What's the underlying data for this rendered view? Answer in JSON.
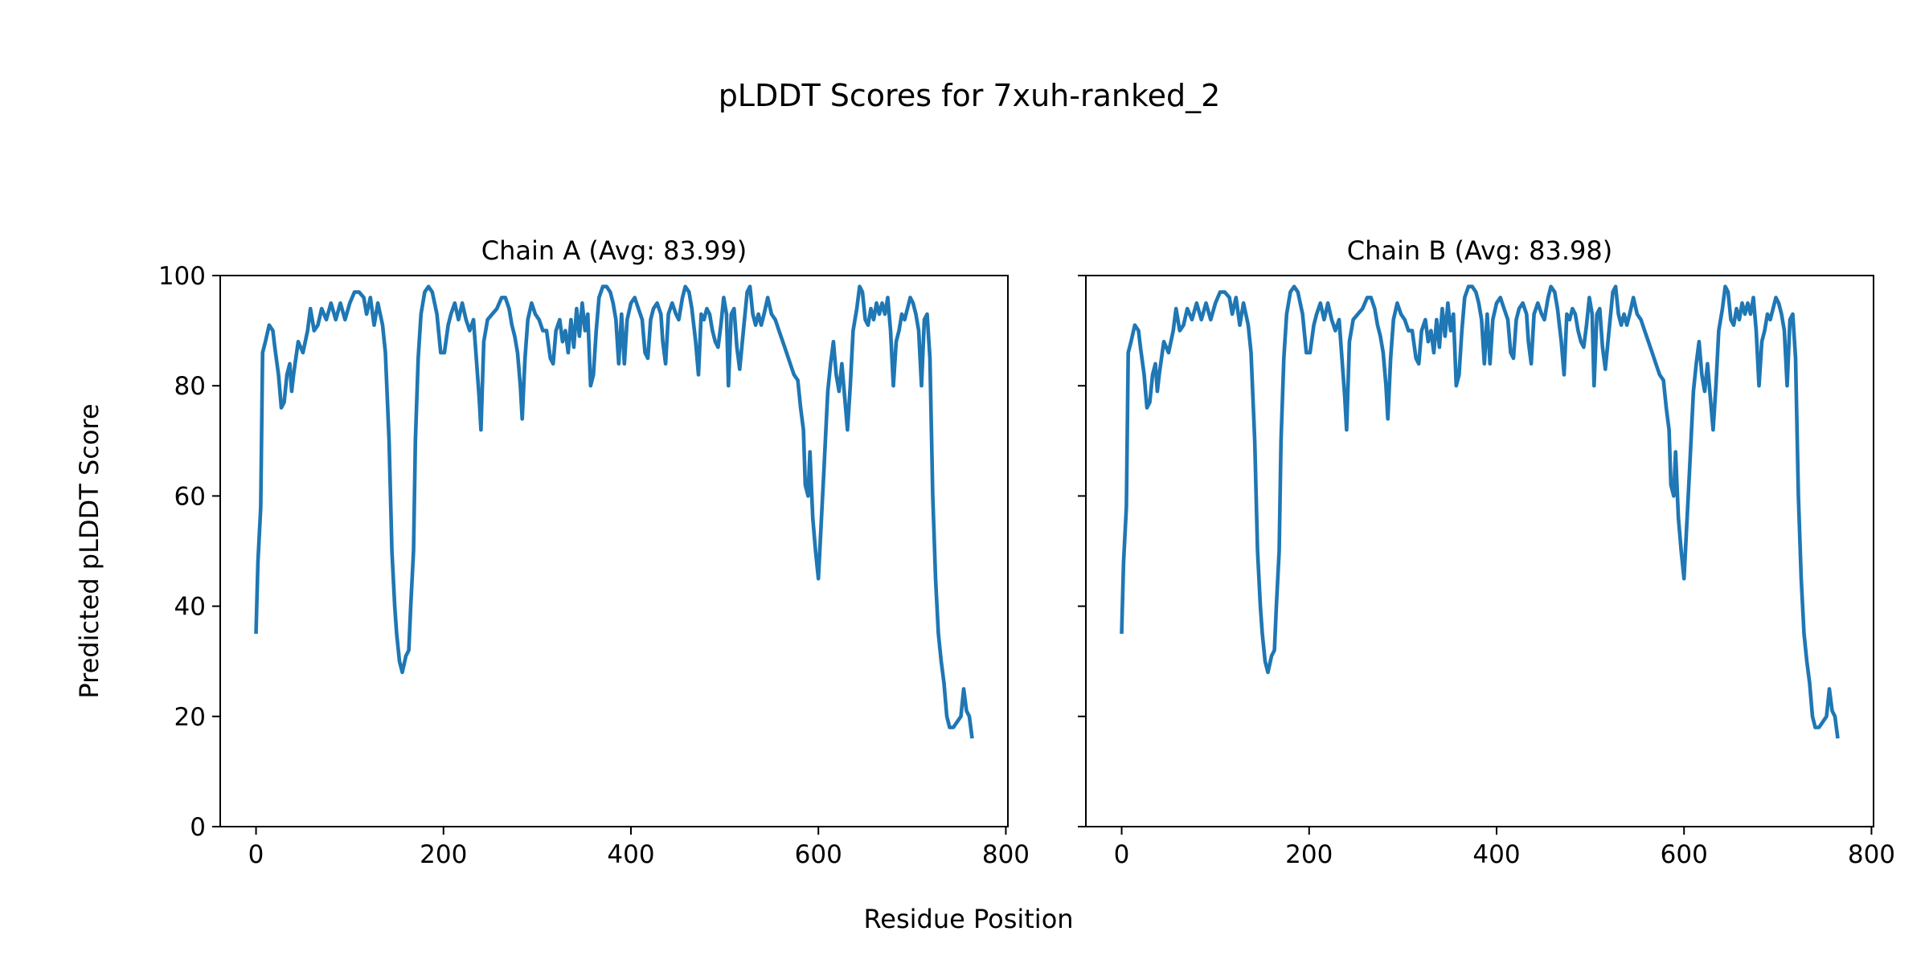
{
  "chart_data": {
    "type": "line",
    "title": "pLDDT Scores for 7xuh-ranked_2",
    "xlabel": "Residue Position",
    "ylabel": "Predicted pLDDT Score",
    "xlim": [
      -38.2,
      802.2
    ],
    "ylim": [
      0,
      100
    ],
    "xticks": [
      0,
      200,
      400,
      600,
      800
    ],
    "yticks": [
      0,
      20,
      40,
      60,
      80,
      100
    ],
    "grid": false,
    "line_color": "#1f77b4",
    "panels": [
      {
        "title": "Chain A (Avg: 83.99)",
        "show_ytick_labels": true
      },
      {
        "title": "Chain B (Avg: 83.98)",
        "show_ytick_labels": false
      }
    ],
    "series": {
      "name": "pLDDT",
      "points": [
        [
          0,
          35
        ],
        [
          2,
          48
        ],
        [
          5,
          58
        ],
        [
          7,
          86
        ],
        [
          10,
          88
        ],
        [
          14,
          91
        ],
        [
          18,
          90
        ],
        [
          20,
          87
        ],
        [
          24,
          82
        ],
        [
          27,
          76
        ],
        [
          30,
          77
        ],
        [
          33,
          82
        ],
        [
          36,
          84
        ],
        [
          38,
          79
        ],
        [
          40,
          82
        ],
        [
          45,
          88
        ],
        [
          50,
          86
        ],
        [
          55,
          90
        ],
        [
          58,
          94
        ],
        [
          62,
          90
        ],
        [
          66,
          91
        ],
        [
          70,
          94
        ],
        [
          75,
          92
        ],
        [
          80,
          95
        ],
        [
          85,
          92
        ],
        [
          90,
          95
        ],
        [
          95,
          92
        ],
        [
          100,
          95
        ],
        [
          105,
          97
        ],
        [
          110,
          97
        ],
        [
          115,
          96
        ],
        [
          118,
          93
        ],
        [
          122,
          96
        ],
        [
          126,
          91
        ],
        [
          130,
          95
        ],
        [
          135,
          91
        ],
        [
          138,
          86
        ],
        [
          142,
          70
        ],
        [
          145,
          50
        ],
        [
          148,
          40
        ],
        [
          150,
          35
        ],
        [
          153,
          30
        ],
        [
          156,
          28
        ],
        [
          160,
          31
        ],
        [
          163,
          32
        ],
        [
          165,
          40
        ],
        [
          168,
          50
        ],
        [
          170,
          70
        ],
        [
          173,
          85
        ],
        [
          176,
          93
        ],
        [
          180,
          97
        ],
        [
          184,
          98
        ],
        [
          188,
          97
        ],
        [
          193,
          93
        ],
        [
          197,
          86
        ],
        [
          201,
          86
        ],
        [
          205,
          91
        ],
        [
          208,
          93
        ],
        [
          212,
          95
        ],
        [
          216,
          92
        ],
        [
          220,
          95
        ],
        [
          224,
          92
        ],
        [
          228,
          90
        ],
        [
          232,
          92
        ],
        [
          235,
          85
        ],
        [
          238,
          78
        ],
        [
          240,
          72
        ],
        [
          243,
          88
        ],
        [
          247,
          92
        ],
        [
          252,
          93
        ],
        [
          257,
          94
        ],
        [
          262,
          96
        ],
        [
          266,
          96
        ],
        [
          270,
          94
        ],
        [
          273,
          91
        ],
        [
          276,
          89
        ],
        [
          279,
          86
        ],
        [
          282,
          80
        ],
        [
          284,
          74
        ],
        [
          287,
          85
        ],
        [
          290,
          92
        ],
        [
          294,
          95
        ],
        [
          298,
          93
        ],
        [
          302,
          92
        ],
        [
          306,
          90
        ],
        [
          310,
          90
        ],
        [
          314,
          85
        ],
        [
          317,
          84
        ],
        [
          320,
          90
        ],
        [
          324,
          92
        ],
        [
          327,
          88
        ],
        [
          330,
          90
        ],
        [
          333,
          86
        ],
        [
          336,
          92
        ],
        [
          339,
          87
        ],
        [
          342,
          94
        ],
        [
          345,
          89
        ],
        [
          348,
          95
        ],
        [
          351,
          90
        ],
        [
          354,
          93
        ],
        [
          357,
          80
        ],
        [
          360,
          82
        ],
        [
          363,
          90
        ],
        [
          366,
          96
        ],
        [
          370,
          98
        ],
        [
          374,
          98
        ],
        [
          378,
          97
        ],
        [
          381,
          95
        ],
        [
          384,
          92
        ],
        [
          387,
          84
        ],
        [
          390,
          93
        ],
        [
          393,
          84
        ],
        [
          396,
          92
        ],
        [
          400,
          95
        ],
        [
          404,
          96
        ],
        [
          408,
          94
        ],
        [
          412,
          92
        ],
        [
          415,
          86
        ],
        [
          418,
          85
        ],
        [
          421,
          92
        ],
        [
          424,
          94
        ],
        [
          428,
          95
        ],
        [
          432,
          93
        ],
        [
          434,
          88
        ],
        [
          437,
          84
        ],
        [
          440,
          93
        ],
        [
          444,
          95
        ],
        [
          448,
          93
        ],
        [
          451,
          92
        ],
        [
          455,
          96
        ],
        [
          458,
          98
        ],
        [
          462,
          97
        ],
        [
          465,
          94
        ],
        [
          469,
          88
        ],
        [
          472,
          82
        ],
        [
          475,
          93
        ],
        [
          478,
          92
        ],
        [
          481,
          94
        ],
        [
          484,
          93
        ],
        [
          487,
          90
        ],
        [
          490,
          88
        ],
        [
          493,
          87
        ],
        [
          496,
          91
        ],
        [
          499,
          96
        ],
        [
          502,
          93
        ],
        [
          504,
          80
        ],
        [
          507,
          93
        ],
        [
          510,
          94
        ],
        [
          513,
          87
        ],
        [
          516,
          83
        ],
        [
          520,
          90
        ],
        [
          524,
          97
        ],
        [
          527,
          98
        ],
        [
          530,
          93
        ],
        [
          533,
          91
        ],
        [
          536,
          93
        ],
        [
          539,
          91
        ],
        [
          542,
          93
        ],
        [
          546,
          96
        ],
        [
          550,
          93
        ],
        [
          554,
          92
        ],
        [
          558,
          90
        ],
        [
          562,
          88
        ],
        [
          566,
          86
        ],
        [
          570,
          84
        ],
        [
          574,
          82
        ],
        [
          578,
          81
        ],
        [
          581,
          76
        ],
        [
          584,
          72
        ],
        [
          586,
          62
        ],
        [
          589,
          60
        ],
        [
          591,
          68
        ],
        [
          594,
          56
        ],
        [
          597,
          50
        ],
        [
          600,
          45
        ],
        [
          603,
          55
        ],
        [
          606,
          65
        ],
        [
          610,
          79
        ],
        [
          613,
          84
        ],
        [
          616,
          88
        ],
        [
          619,
          82
        ],
        [
          622,
          79
        ],
        [
          625,
          84
        ],
        [
          628,
          78
        ],
        [
          631,
          72
        ],
        [
          634,
          80
        ],
        [
          637,
          90
        ],
        [
          641,
          94
        ],
        [
          644,
          98
        ],
        [
          647,
          97
        ],
        [
          650,
          92
        ],
        [
          653,
          91
        ],
        [
          656,
          94
        ],
        [
          659,
          92
        ],
        [
          662,
          95
        ],
        [
          665,
          93
        ],
        [
          668,
          95
        ],
        [
          671,
          93
        ],
        [
          674,
          96
        ],
        [
          677,
          90
        ],
        [
          680,
          80
        ],
        [
          683,
          88
        ],
        [
          686,
          90
        ],
        [
          689,
          93
        ],
        [
          692,
          92
        ],
        [
          695,
          94
        ],
        [
          698,
          96
        ],
        [
          701,
          95
        ],
        [
          704,
          93
        ],
        [
          707,
          90
        ],
        [
          710,
          80
        ],
        [
          713,
          92
        ],
        [
          716,
          93
        ],
        [
          719,
          85
        ],
        [
          722,
          60
        ],
        [
          725,
          45
        ],
        [
          728,
          35
        ],
        [
          731,
          30
        ],
        [
          734,
          26
        ],
        [
          737,
          20
        ],
        [
          740,
          18
        ],
        [
          744,
          18
        ],
        [
          748,
          19
        ],
        [
          752,
          20
        ],
        [
          755,
          25
        ],
        [
          758,
          21
        ],
        [
          761,
          20
        ],
        [
          764,
          16
        ]
      ]
    }
  }
}
